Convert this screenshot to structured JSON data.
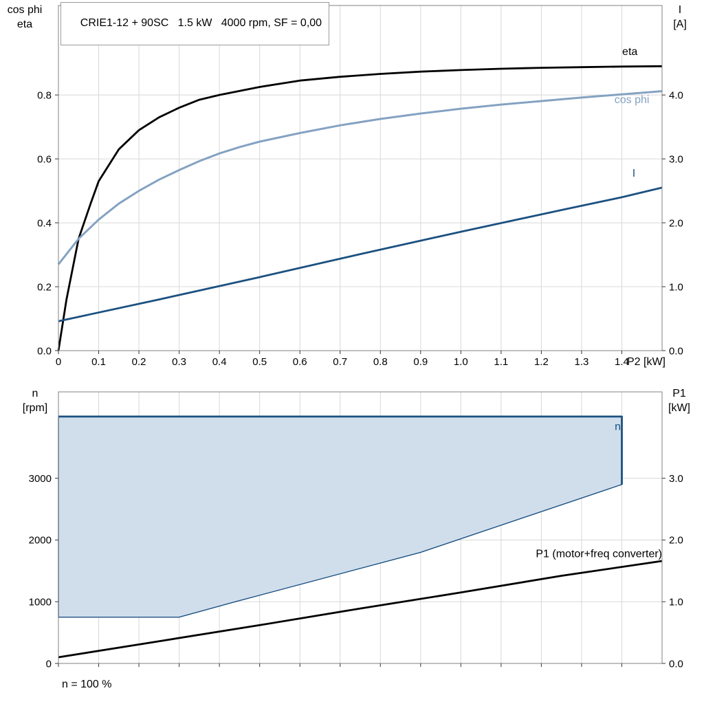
{
  "header": {
    "title": "CRIE1-12 + 90SC   1.5 kW   4000 rpm, SF = 0,00"
  },
  "footer": {
    "note": "n = 100 %"
  },
  "colors": {
    "black": "#000000",
    "steel_blue": "#84A2C2",
    "dark_blue": "#1B5080",
    "area_fill": "#D0DEEC",
    "grid": "#D8D8D8",
    "axis": "#808080",
    "tick": "#333333"
  },
  "chart_data": [
    {
      "id": "top",
      "type": "line",
      "x_axis": {
        "label": "P2 [kW]",
        "min": 0,
        "max": 1.5,
        "ticks": [
          0,
          0.1,
          0.2,
          0.3,
          0.4,
          0.5,
          0.6,
          0.7,
          0.8,
          0.9,
          1.0,
          1.1,
          1.2,
          1.3,
          1.4
        ],
        "tick_labels": [
          "0",
          "0.1",
          "0.2",
          "0.3",
          "0.4",
          "0.5",
          "0.6",
          "0.7",
          "0.8",
          "0.9",
          "1.0",
          "1.1",
          "1.2",
          "1.3",
          "1.4"
        ],
        "show_tick_labels": true
      },
      "y_left": {
        "title_lines": [
          "cos phi",
          "eta"
        ],
        "min": 0,
        "max": 1.08,
        "ticks": [
          0,
          0.2,
          0.4,
          0.6,
          0.8
        ],
        "tick_labels": [
          "0.0",
          "0.2",
          "0.4",
          "0.6",
          "0.8"
        ]
      },
      "y_right": {
        "title_lines": [
          "I",
          "[A]"
        ],
        "min": 0,
        "max": 5.4,
        "ticks": [
          0,
          1,
          2,
          3,
          4
        ],
        "tick_labels": [
          "0.0",
          "1.0",
          "2.0",
          "3.0",
          "4.0"
        ]
      },
      "series": [
        {
          "name": "eta",
          "axis": "left",
          "color": "black",
          "width": 2.8,
          "points": [
            [
              0,
              0
            ],
            [
              0.02,
              0.16
            ],
            [
              0.05,
              0.35
            ],
            [
              0.08,
              0.46
            ],
            [
              0.1,
              0.53
            ],
            [
              0.15,
              0.63
            ],
            [
              0.2,
              0.69
            ],
            [
              0.25,
              0.73
            ],
            [
              0.3,
              0.76
            ],
            [
              0.35,
              0.785
            ],
            [
              0.4,
              0.8
            ],
            [
              0.5,
              0.825
            ],
            [
              0.6,
              0.845
            ],
            [
              0.7,
              0.857
            ],
            [
              0.8,
              0.866
            ],
            [
              0.9,
              0.873
            ],
            [
              1.0,
              0.878
            ],
            [
              1.1,
              0.882
            ],
            [
              1.2,
              0.885
            ],
            [
              1.3,
              0.887
            ],
            [
              1.4,
              0.889
            ],
            [
              1.5,
              0.89
            ]
          ],
          "label": {
            "text": "eta",
            "x": 1.42,
            "y": 0.925,
            "color": "black",
            "anchor": "middle"
          }
        },
        {
          "name": "cos-phi",
          "axis": "left",
          "color": "steel_blue",
          "width": 3,
          "points": [
            [
              0,
              0.27
            ],
            [
              0.05,
              0.35
            ],
            [
              0.1,
              0.41
            ],
            [
              0.15,
              0.46
            ],
            [
              0.2,
              0.5
            ],
            [
              0.25,
              0.535
            ],
            [
              0.3,
              0.565
            ],
            [
              0.35,
              0.593
            ],
            [
              0.4,
              0.617
            ],
            [
              0.45,
              0.637
            ],
            [
              0.5,
              0.654
            ],
            [
              0.6,
              0.681
            ],
            [
              0.7,
              0.705
            ],
            [
              0.8,
              0.725
            ],
            [
              0.9,
              0.742
            ],
            [
              1.0,
              0.757
            ],
            [
              1.1,
              0.77
            ],
            [
              1.2,
              0.781
            ],
            [
              1.3,
              0.792
            ],
            [
              1.4,
              0.802
            ],
            [
              1.5,
              0.812
            ]
          ],
          "label": {
            "text": "cos phi",
            "x": 1.425,
            "y": 0.775,
            "color": "steel_blue",
            "anchor": "middle"
          }
        },
        {
          "name": "I",
          "axis": "right",
          "color": "dark_blue",
          "width": 2.8,
          "points": [
            [
              0,
              0.46
            ],
            [
              0.25,
              0.8
            ],
            [
              0.5,
              1.15
            ],
            [
              0.75,
              1.51
            ],
            [
              1.0,
              1.86
            ],
            [
              1.25,
              2.2
            ],
            [
              1.4,
              2.4
            ],
            [
              1.5,
              2.55
            ]
          ],
          "label": {
            "text": "I",
            "x": 1.43,
            "y": 2.72,
            "color": "dark_blue",
            "anchor": "middle"
          }
        }
      ]
    },
    {
      "id": "bottom",
      "type": "line",
      "x_axis": {
        "label": "",
        "min": 0,
        "max": 1.5,
        "ticks": [
          0,
          0.1,
          0.2,
          0.3,
          0.4,
          0.5,
          0.6,
          0.7,
          0.8,
          0.9,
          1.0,
          1.1,
          1.2,
          1.3,
          1.4
        ],
        "tick_labels": [],
        "show_tick_labels": false
      },
      "y_left": {
        "title_lines": [
          "n",
          "[rpm]"
        ],
        "min": 0,
        "max": 4400,
        "ticks": [
          0,
          1000,
          2000,
          3000
        ],
        "tick_labels": [
          "0",
          "1000",
          "2000",
          "3000"
        ]
      },
      "y_right": {
        "title_lines": [
          "P1",
          "[kW]"
        ],
        "min": 0,
        "max": 4.4,
        "ticks": [
          0,
          1,
          2,
          3
        ],
        "tick_labels": [
          "0.0",
          "1.0",
          "2.0",
          "3.0"
        ]
      },
      "area": {
        "name": "n-speed-envelope",
        "axis": "left",
        "fill": "area_fill",
        "stroke": "dark_blue",
        "stroke_width": 1.4,
        "points": [
          [
            0,
            750
          ],
          [
            0.3,
            750
          ],
          [
            0.44,
            1000
          ],
          [
            0.9,
            1800
          ],
          [
            1.4,
            2900
          ],
          [
            1.4,
            4000
          ],
          [
            0,
            4000
          ]
        ]
      },
      "series": [
        {
          "name": "n",
          "axis": "left",
          "color": "dark_blue",
          "width": 2.8,
          "points": [
            [
              0,
              4000
            ],
            [
              1.4,
              4000
            ],
            [
              1.4,
              2900
            ]
          ],
          "label": {
            "text": "n",
            "x": 1.39,
            "y": 3780,
            "color": "dark_blue",
            "anchor": "middle"
          }
        },
        {
          "name": "P1",
          "axis": "right",
          "color": "black",
          "width": 2.8,
          "points": [
            [
              0,
              0.1
            ],
            [
              0.25,
              0.36
            ],
            [
              0.5,
              0.62
            ],
            [
              0.75,
              0.89
            ],
            [
              1.0,
              1.15
            ],
            [
              1.25,
              1.42
            ],
            [
              1.5,
              1.66
            ]
          ],
          "label": {
            "text": "P1 (motor+freq converter)",
            "x": 1.5,
            "y": 1.72,
            "color": "black",
            "anchor": "end"
          }
        }
      ]
    }
  ]
}
